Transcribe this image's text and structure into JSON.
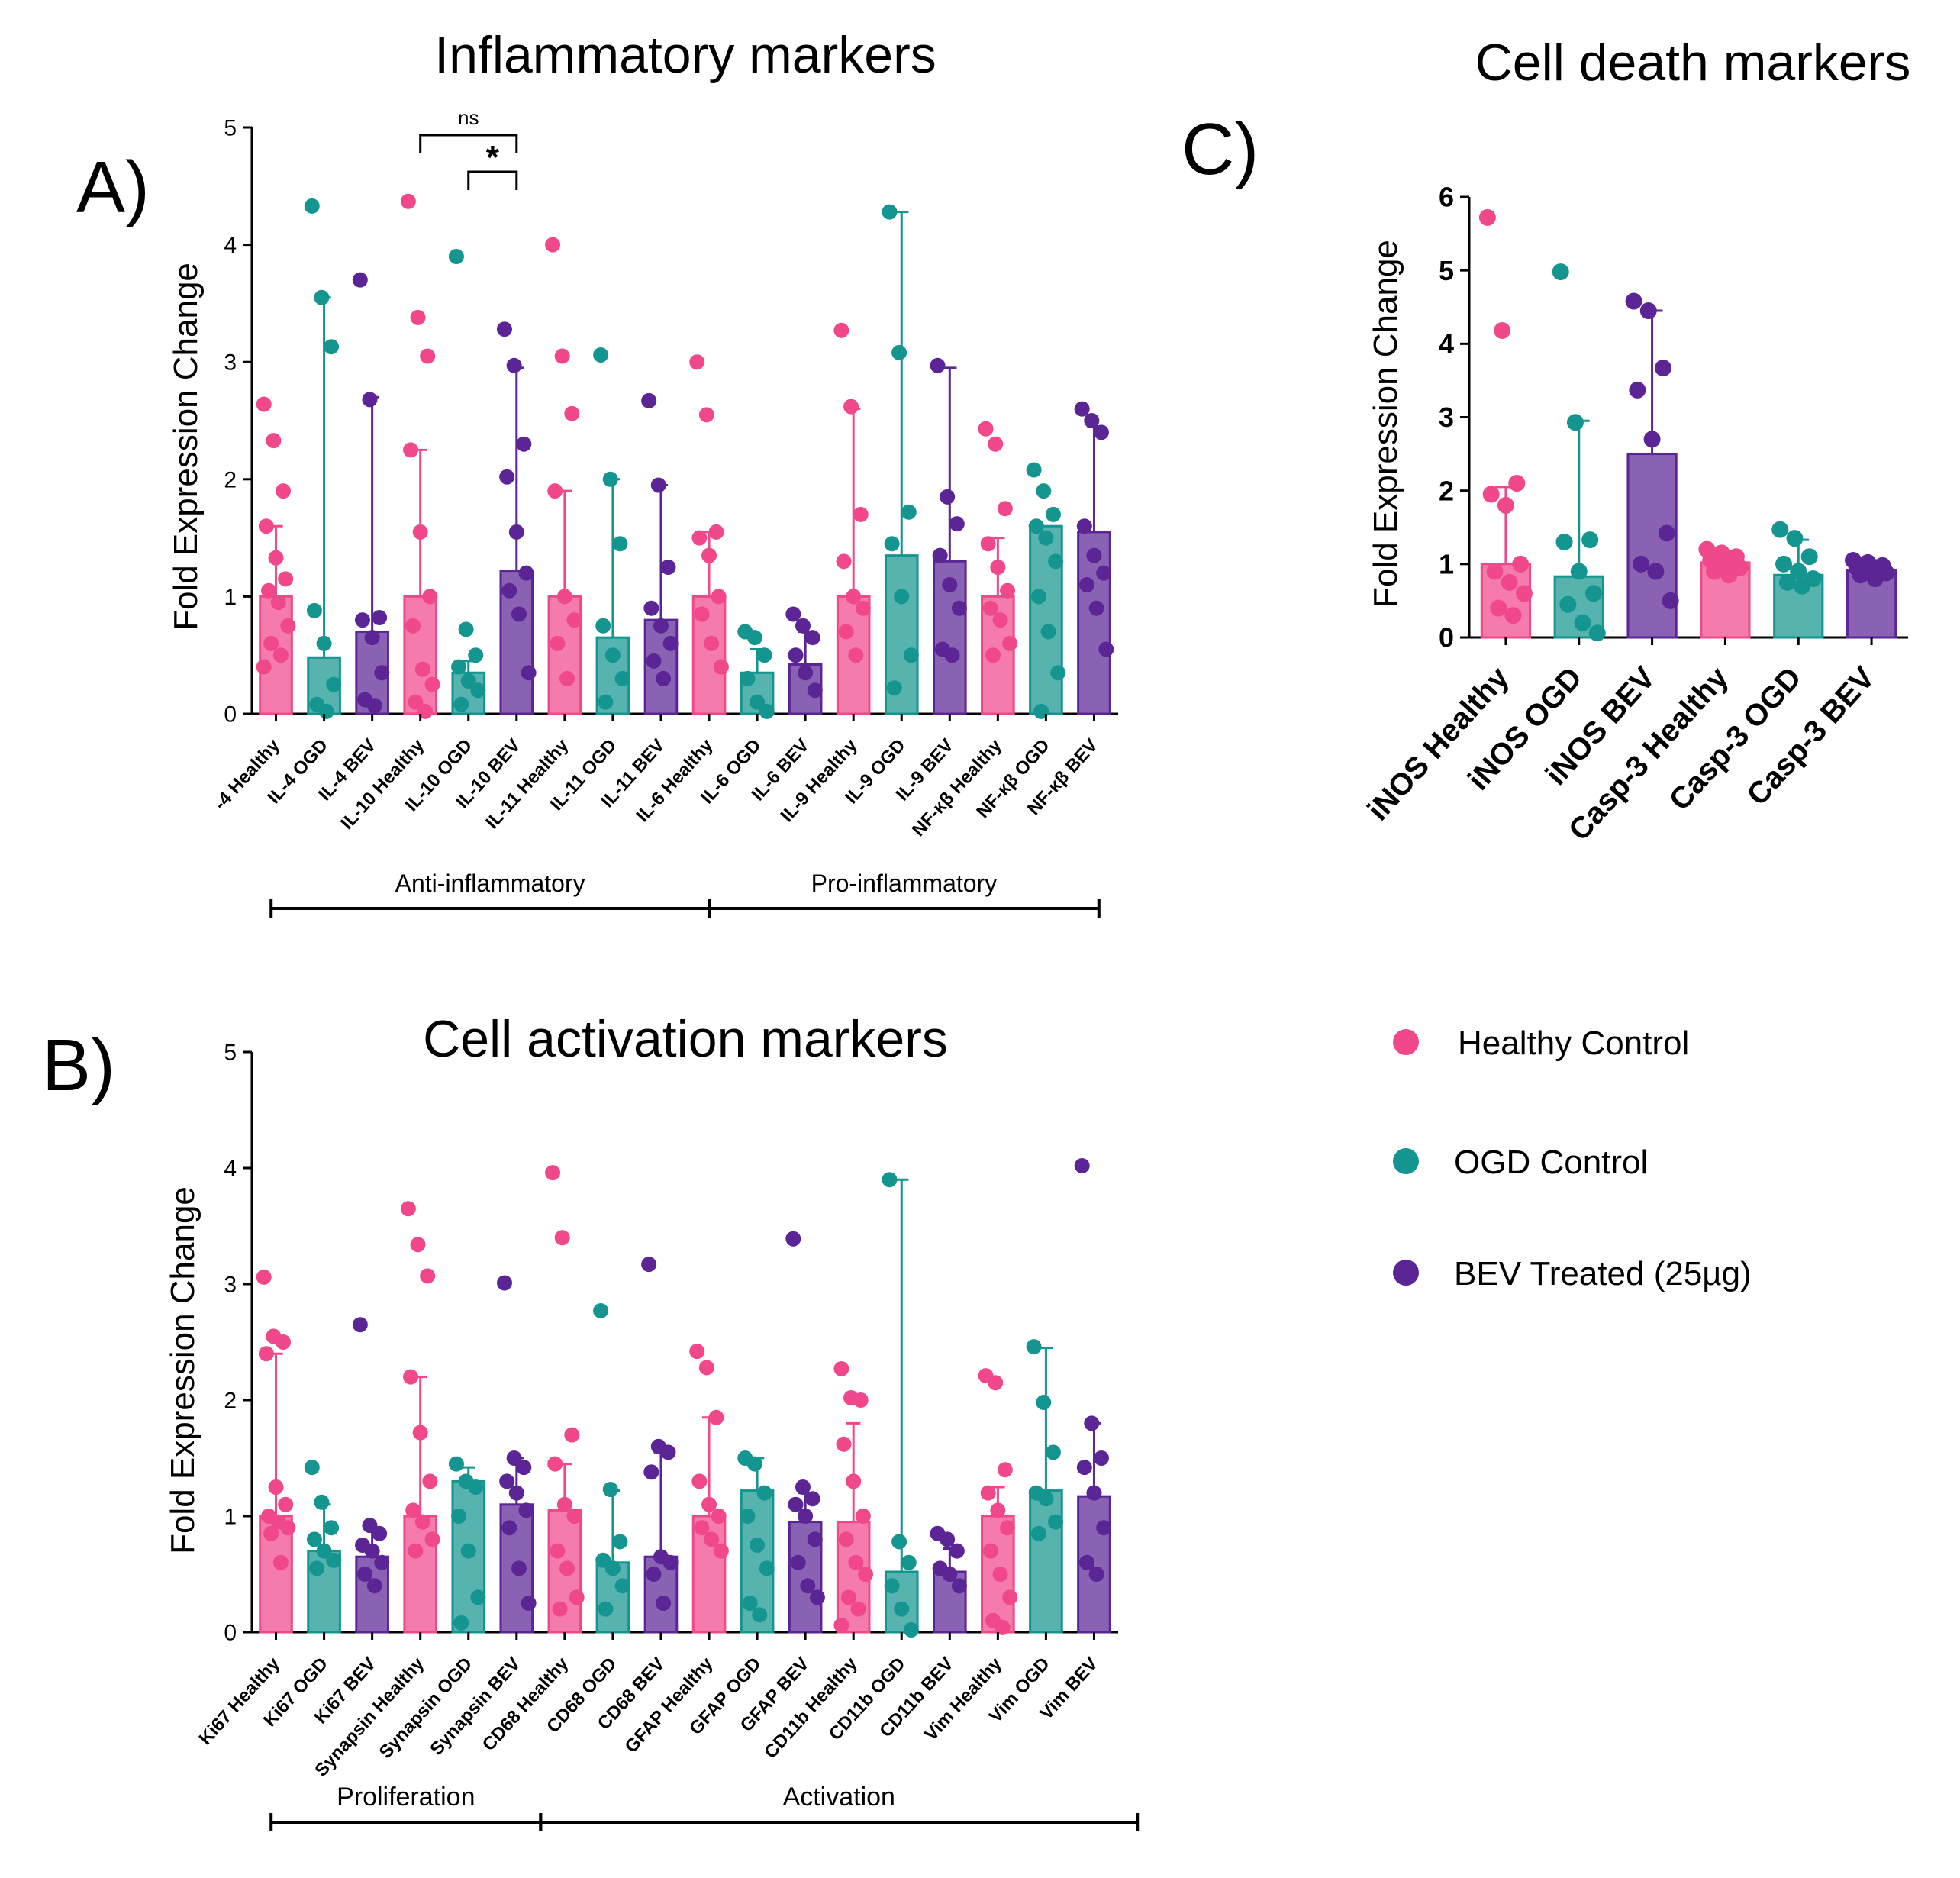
{
  "figure": {
    "colors": {
      "healthy": "#f0488a",
      "ogd": "#14958f",
      "bev": "#5b2596"
    },
    "legend": [
      {
        "name": "Healthy Control",
        "color": "#f0488a"
      },
      {
        "name": "OGD Control",
        "color": "#14958f"
      },
      {
        "name": "BEV Treated (25µg)",
        "color": "#5b2596"
      }
    ]
  },
  "chart_data": [
    {
      "id": "A",
      "panel_label": "A)",
      "type": "bar",
      "title": "Inflammatory markers",
      "ylabel": "Fold Expression Change",
      "xlabel": "",
      "ylim": [
        0,
        5
      ],
      "yticks": [
        0,
        1,
        2,
        3,
        4,
        5
      ],
      "categories": [
        "-4 Healthy",
        "IL-4 OGD",
        "IL-4 BEV",
        "IL-10 Healthy",
        "IL-10 OGD",
        "IL-10 BEV",
        "IL-11 Healthy",
        "IL-11 OGD",
        "IL-11 BEV",
        "IL-6 Healthy",
        "IL-6 OGD",
        "IL-6 BEV",
        "IL-9 Healthy",
        "IL-9 OGD",
        "IL-9 BEV",
        "NF-κβ Healthy",
        "NF-κβ OGD",
        "NF-κβ BEV"
      ],
      "groups": [
        "healthy",
        "ogd",
        "bev",
        "healthy",
        "ogd",
        "bev",
        "healthy",
        "ogd",
        "bev",
        "healthy",
        "ogd",
        "bev",
        "healthy",
        "ogd",
        "bev",
        "healthy",
        "ogd",
        "bev"
      ],
      "values": [
        1.0,
        0.48,
        0.7,
        1.0,
        0.35,
        1.22,
        1.0,
        0.65,
        0.8,
        1.0,
        0.35,
        0.42,
        1.0,
        1.35,
        1.3,
        1.0,
        1.6,
        1.55
      ],
      "error_upper": [
        1.6,
        3.55,
        2.7,
        2.25,
        0.45,
        2.95,
        1.9,
        2.0,
        1.95,
        1.55,
        0.55,
        0.7,
        2.6,
        4.28,
        2.95,
        1.5,
        1.6,
        2.45
      ],
      "points": [
        [
          2.64,
          2.33,
          1.9,
          1.6,
          1.33,
          1.15,
          1.05,
          0.95,
          0.75,
          0.6,
          0.5,
          0.4
        ],
        [
          4.33,
          3.55,
          3.13,
          0.88,
          0.6,
          0.25,
          0.08,
          0.02
        ],
        [
          3.7,
          2.68,
          0.82,
          0.8,
          0.65,
          0.35,
          0.12,
          0.07
        ],
        [
          4.37,
          3.38,
          3.05,
          2.25,
          1.55,
          1.0,
          0.75,
          0.38,
          0.25,
          0.1,
          0.02
        ],
        [
          3.9,
          0.72,
          0.5,
          0.4,
          0.28,
          0.2,
          0.08
        ],
        [
          3.28,
          2.97,
          2.3,
          2.02,
          1.55,
          1.2,
          1.05,
          0.85,
          0.35
        ],
        [
          4.0,
          3.05,
          2.56,
          1.9,
          1.0,
          0.8,
          0.6,
          0.3
        ],
        [
          3.06,
          2.0,
          1.45,
          0.75,
          0.5,
          0.3,
          0.1
        ],
        [
          2.67,
          1.95,
          1.25,
          0.9,
          0.75,
          0.6,
          0.45,
          0.3
        ],
        [
          3.0,
          2.55,
          1.55,
          1.5,
          1.35,
          1.0,
          0.85,
          0.6,
          0.4
        ],
        [
          0.7,
          0.65,
          0.5,
          0.3,
          0.1,
          0.02
        ],
        [
          0.85,
          0.75,
          0.65,
          0.5,
          0.35,
          0.2
        ],
        [
          3.27,
          2.62,
          1.7,
          1.3,
          1.0,
          0.9,
          0.7,
          0.5
        ],
        [
          4.28,
          3.08,
          1.72,
          1.45,
          1.0,
          0.5,
          0.22
        ],
        [
          2.97,
          1.85,
          1.62,
          1.35,
          1.1,
          0.9,
          0.55,
          0.5
        ],
        [
          2.43,
          2.3,
          1.75,
          1.45,
          1.25,
          1.05,
          0.9,
          0.8,
          0.6,
          0.5
        ],
        [
          2.08,
          1.9,
          1.7,
          1.6,
          1.5,
          1.3,
          1.0,
          0.7,
          0.35,
          0.02
        ],
        [
          2.6,
          2.5,
          2.4,
          1.6,
          1.35,
          1.2,
          1.1,
          0.9,
          0.55
        ]
      ],
      "significance": [
        {
          "from": 3,
          "to": 5,
          "label": "ns"
        },
        {
          "from": 4,
          "to": 5,
          "label": "*"
        }
      ],
      "group_brackets": [
        {
          "label": "Anti-inflammatory",
          "from": 0,
          "to": 9
        },
        {
          "label": "Pro-inflammatory",
          "from": 9,
          "to": 17
        }
      ]
    },
    {
      "id": "B",
      "panel_label": "B)",
      "type": "bar",
      "title": "Cell activation markers",
      "ylabel": "Fold Expression Change",
      "xlabel": "",
      "ylim": [
        0,
        5
      ],
      "yticks": [
        0,
        1,
        2,
        3,
        4,
        5
      ],
      "categories": [
        "Ki67 Healthy",
        "Ki67 OGD",
        "Ki67 BEV",
        "Synapsin Healthy",
        "Synapsin OGD",
        "Synapsin BEV",
        "CD68 Healthy",
        "CD68 OGD",
        "CD68 BEV",
        "GFAP Healthy",
        "GFAP OGD",
        "GFAP BEV",
        "CD11b Healthy",
        "CD11b OGD",
        "CD11b BEV",
        "Vim Healthy",
        "Vim OGD",
        "Vim BEV"
      ],
      "groups": [
        "healthy",
        "ogd",
        "bev",
        "healthy",
        "ogd",
        "bev",
        "healthy",
        "ogd",
        "bev",
        "healthy",
        "ogd",
        "bev",
        "healthy",
        "ogd",
        "bev",
        "healthy",
        "ogd",
        "bev"
      ],
      "values": [
        1.0,
        0.7,
        0.65,
        1.0,
        1.3,
        1.1,
        1.05,
        0.6,
        0.65,
        1.0,
        1.22,
        0.95,
        0.95,
        0.52,
        0.52,
        1.0,
        1.22,
        1.17
      ],
      "error_upper": [
        2.4,
        1.1,
        0.9,
        2.2,
        1.42,
        1.5,
        1.45,
        1.22,
        1.55,
        1.85,
        1.5,
        1.2,
        1.8,
        3.9,
        0.72,
        1.25,
        2.45,
        1.8
      ],
      "points": [
        [
          3.06,
          2.55,
          2.5,
          2.4,
          1.25,
          1.1,
          1.0,
          0.95,
          0.9,
          0.85,
          0.6
        ],
        [
          1.42,
          1.12,
          0.9,
          0.8,
          0.7,
          0.62,
          0.55
        ],
        [
          2.65,
          0.92,
          0.85,
          0.75,
          0.7,
          0.6,
          0.5,
          0.4
        ],
        [
          3.65,
          3.34,
          3.07,
          2.2,
          1.72,
          1.3,
          1.05,
          0.95,
          0.8,
          0.7
        ],
        [
          1.45,
          1.3,
          1.25,
          1.0,
          0.7,
          0.3,
          0.08
        ],
        [
          3.01,
          1.5,
          1.42,
          1.3,
          1.2,
          1.05,
          0.9,
          0.55,
          0.25
        ],
        [
          3.96,
          3.4,
          1.7,
          1.45,
          1.1,
          1.0,
          0.7,
          0.55,
          0.3,
          0.2
        ],
        [
          2.77,
          1.23,
          0.78,
          0.62,
          0.55,
          0.4,
          0.2
        ],
        [
          3.17,
          1.6,
          1.55,
          1.38,
          0.65,
          0.6,
          0.5,
          0.25
        ],
        [
          2.42,
          2.28,
          1.85,
          1.3,
          1.1,
          1.0,
          0.9,
          0.8,
          0.7
        ],
        [
          1.5,
          1.45,
          1.2,
          1.0,
          0.75,
          0.55,
          0.25,
          0.15
        ],
        [
          3.39,
          1.25,
          1.15,
          1.1,
          1.0,
          0.8,
          0.6,
          0.4,
          0.3
        ],
        [
          2.27,
          2.02,
          2.0,
          1.62,
          1.3,
          1.0,
          0.8,
          0.6,
          0.5,
          0.3,
          0.2,
          0.06
        ],
        [
          3.9,
          0.78,
          0.6,
          0.4,
          0.2,
          0.02
        ],
        [
          0.85,
          0.8,
          0.7,
          0.55,
          0.5,
          0.4
        ],
        [
          2.21,
          2.15,
          1.4,
          1.2,
          1.05,
          0.9,
          0.7,
          0.5,
          0.3,
          0.1,
          0.04
        ],
        [
          2.46,
          1.98,
          1.55,
          1.2,
          1.15,
          0.95,
          0.85
        ],
        [
          4.02,
          1.8,
          1.5,
          1.42,
          1.2,
          0.9,
          0.6,
          0.5
        ]
      ],
      "significance": [],
      "group_brackets": [
        {
          "label": "Proliferation",
          "from": 0,
          "to": 5.5
        },
        {
          "label": "Activation",
          "from": 5.5,
          "to": 17.8
        }
      ]
    },
    {
      "id": "C",
      "panel_label": "C)",
      "type": "bar",
      "title": "Cell death markers",
      "ylabel": "Fold Expression Change",
      "xlabel": "",
      "ylim": [
        0,
        6
      ],
      "yticks": [
        0,
        1,
        2,
        3,
        4,
        5,
        6
      ],
      "categories": [
        "iNOS Healthy",
        "iNOS OGD",
        "iNOS BEV",
        "Casp-3 Healthy",
        "Casp-3 OGD",
        "Casp-3 BEV"
      ],
      "groups": [
        "healthy",
        "ogd",
        "bev",
        "healthy",
        "ogd",
        "bev"
      ],
      "values": [
        1.0,
        0.83,
        2.5,
        1.02,
        0.85,
        0.92
      ],
      "error_upper": [
        2.05,
        2.95,
        4.45,
        1.18,
        1.33,
        1.05
      ],
      "points": [
        [
          5.72,
          4.18,
          2.1,
          1.95,
          1.8,
          1.0,
          0.9,
          0.75,
          0.6,
          0.4,
          0.3
        ],
        [
          4.98,
          2.93,
          1.33,
          1.3,
          0.9,
          0.6,
          0.45,
          0.2,
          0.06
        ],
        [
          4.58,
          4.45,
          3.67,
          3.37,
          2.7,
          1.42,
          1.0,
          0.9,
          0.5
        ],
        [
          1.2,
          1.15,
          1.1,
          1.05,
          1.0,
          0.95,
          0.9,
          0.85
        ],
        [
          1.47,
          1.35,
          1.1,
          1.0,
          0.9,
          0.8,
          0.75,
          0.7
        ],
        [
          1.05,
          1.02,
          0.98,
          0.95,
          0.9,
          0.88,
          0.85,
          0.8
        ]
      ],
      "significance": [],
      "group_brackets": []
    }
  ]
}
